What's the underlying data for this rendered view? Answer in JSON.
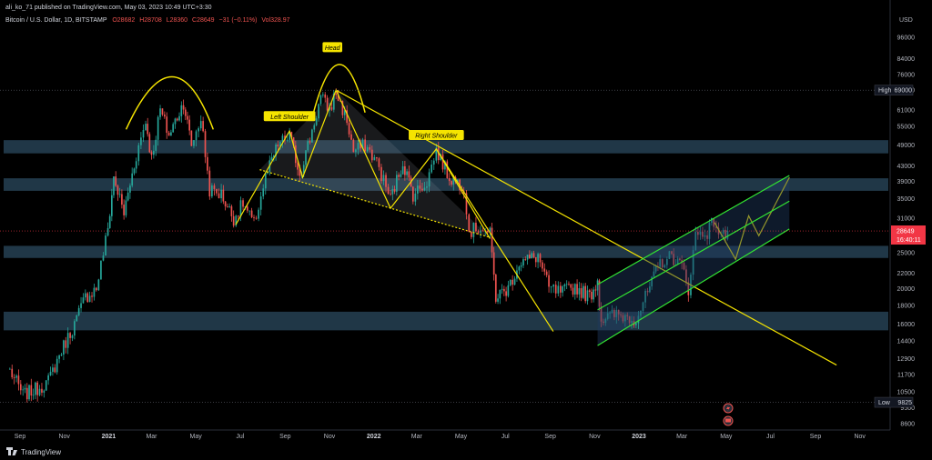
{
  "top_line": "ali_ko_71 published on TradingView.com, May 03, 2023 10:49 UTC+3:30",
  "header": {
    "symbol": "Bitcoin / U.S. Dollar, 1D, BITSTAMP",
    "open": "O28682",
    "high": "H28708",
    "low": "L28360",
    "close": "C28649",
    "change": "−31 (−0.11%)",
    "vol": "Vol328.97"
  },
  "footer": {
    "brand": "TradingView"
  },
  "colors": {
    "background": "#000000",
    "up": "#26a69a",
    "down": "#ef5350",
    "trendline": "#f5e400",
    "channel": "#32e532",
    "zone": "#2b4a5f",
    "price_tag": "#f23645"
  },
  "chart_data": {
    "type": "candlestick",
    "y_axis": {
      "scale": "log",
      "unit": "USD",
      "ticks": [
        8600,
        9500,
        10500,
        11700,
        12900,
        14400,
        16000,
        18000,
        20000,
        22000,
        25000,
        28000,
        31000,
        35000,
        39000,
        43000,
        49000,
        55000,
        61000,
        69000,
        76000,
        84000,
        96000
      ],
      "range": [
        8000,
        110000
      ]
    },
    "x_axis": {
      "ticks": [
        {
          "label": "Sep",
          "date": "2020-09-01"
        },
        {
          "label": "Nov",
          "date": "2020-11-01"
        },
        {
          "label": "2021",
          "date": "2021-01-01",
          "bold": true
        },
        {
          "label": "Mar",
          "date": "2021-03-01"
        },
        {
          "label": "May",
          "date": "2021-05-01"
        },
        {
          "label": "Jul",
          "date": "2021-07-01"
        },
        {
          "label": "Sep",
          "date": "2021-09-01"
        },
        {
          "label": "Nov",
          "date": "2021-11-01"
        },
        {
          "label": "2022",
          "date": "2022-01-01",
          "bold": true
        },
        {
          "label": "Mar",
          "date": "2022-03-01"
        },
        {
          "label": "May",
          "date": "2022-05-01"
        },
        {
          "label": "Jul",
          "date": "2022-07-01"
        },
        {
          "label": "Sep",
          "date": "2022-09-01"
        },
        {
          "label": "Nov",
          "date": "2022-11-01"
        },
        {
          "label": "2023",
          "date": "2023-01-01",
          "bold": true
        },
        {
          "label": "Mar",
          "date": "2023-03-01"
        },
        {
          "label": "May",
          "date": "2023-05-01"
        },
        {
          "label": "Jul",
          "date": "2023-07-01"
        },
        {
          "label": "Sep",
          "date": "2023-09-01"
        },
        {
          "label": "Nov",
          "date": "2023-11-01"
        }
      ]
    },
    "candle_path": [
      [
        "2020-08-18",
        12000
      ],
      [
        "2020-09-05",
        10300
      ],
      [
        "2020-09-25",
        10700
      ],
      [
        "2020-10-10",
        11200
      ],
      [
        "2020-10-28",
        13600
      ],
      [
        "2020-11-15",
        16000
      ],
      [
        "2020-11-30",
        19000
      ],
      [
        "2020-12-15",
        20000
      ],
      [
        "2020-12-31",
        29000
      ],
      [
        "2021-01-08",
        40000
      ],
      [
        "2021-01-22",
        32000
      ],
      [
        "2021-02-08",
        46000
      ],
      [
        "2021-02-21",
        57000
      ],
      [
        "2021-03-01",
        45000
      ],
      [
        "2021-03-13",
        61000
      ],
      [
        "2021-03-25",
        52000
      ],
      [
        "2021-04-14",
        64000
      ],
      [
        "2021-04-25",
        49000
      ],
      [
        "2021-05-08",
        58000
      ],
      [
        "2021-05-20",
        37000
      ],
      [
        "2021-06-05",
        36000
      ],
      [
        "2021-06-22",
        31000
      ],
      [
        "2021-07-05",
        34000
      ],
      [
        "2021-07-20",
        29800
      ],
      [
        "2021-08-05",
        40000
      ],
      [
        "2021-08-22",
        49000
      ],
      [
        "2021-09-07",
        52000
      ],
      [
        "2021-09-21",
        41000
      ],
      [
        "2021-10-05",
        51000
      ],
      [
        "2021-10-20",
        66000
      ],
      [
        "2021-11-01",
        61000
      ],
      [
        "2021-11-10",
        68000
      ],
      [
        "2021-11-25",
        57000
      ],
      [
        "2021-12-04",
        47000
      ],
      [
        "2021-12-20",
        49000
      ],
      [
        "2022-01-05",
        44000
      ],
      [
        "2022-01-24",
        35000
      ],
      [
        "2022-02-10",
        44000
      ],
      [
        "2022-02-24",
        36000
      ],
      [
        "2022-03-15",
        39000
      ],
      [
        "2022-03-28",
        47500
      ],
      [
        "2022-04-15",
        40000
      ],
      [
        "2022-05-05",
        38000
      ],
      [
        "2022-05-12",
        28500
      ],
      [
        "2022-05-28",
        29500
      ],
      [
        "2022-06-10",
        28000
      ],
      [
        "2022-06-18",
        19000
      ],
      [
        "2022-07-05",
        20000
      ],
      [
        "2022-07-20",
        23500
      ],
      [
        "2022-08-15",
        24500
      ],
      [
        "2022-08-30",
        20000
      ],
      [
        "2022-09-15",
        19500
      ],
      [
        "2022-10-05",
        20200
      ],
      [
        "2022-10-25",
        19000
      ],
      [
        "2022-11-05",
        21000
      ],
      [
        "2022-11-10",
        16500
      ],
      [
        "2022-12-01",
        17000
      ],
      [
        "2022-12-28",
        16600
      ],
      [
        "2023-01-13",
        19500
      ],
      [
        "2023-01-30",
        23500
      ],
      [
        "2023-02-15",
        24500
      ],
      [
        "2023-03-01",
        23000
      ],
      [
        "2023-03-10",
        20000
      ],
      [
        "2023-03-20",
        28000
      ],
      [
        "2023-04-05",
        28500
      ],
      [
        "2023-04-14",
        30500
      ],
      [
        "2023-04-24",
        27500
      ],
      [
        "2023-05-03",
        28649
      ]
    ],
    "zones": [
      {
        "low": 46500,
        "high": 50500
      },
      {
        "low": 36800,
        "high": 39800
      },
      {
        "low": 24200,
        "high": 26100
      },
      {
        "low": 15400,
        "high": 17300
      }
    ],
    "price_labels": [
      {
        "text": "High",
        "value_text": "69000",
        "value": 69000
      },
      {
        "text": "Low",
        "value_text": "9825",
        "value": 9825
      }
    ],
    "current_price": {
      "value": 28649,
      "text": "28649",
      "countdown": "16:40:11"
    },
    "annotations": {
      "left_shoulder": "Left Shoulder",
      "head": "Head",
      "right_shoulder": "Right Shoulder"
    },
    "pattern_lines": [
      {
        "kind": "solid",
        "points": [
          [
            "2021-06-25",
            29800
          ],
          [
            "2021-09-07",
            53500
          ],
          [
            "2021-09-25",
            40000
          ],
          [
            "2021-11-10",
            69000
          ],
          [
            "2022-01-24",
            33000
          ],
          [
            "2022-03-28",
            47800
          ],
          [
            "2022-06-10",
            27300
          ]
        ]
      },
      {
        "kind": "neckline",
        "points": [
          [
            "2021-07-28",
            42000
          ],
          [
            "2022-06-10",
            27500
          ]
        ]
      },
      {
        "kind": "solid",
        "points": [
          [
            "2021-11-10",
            69000
          ],
          [
            "2023-09-30",
            12400
          ]
        ]
      },
      {
        "kind": "solid",
        "points": [
          [
            "2022-03-28",
            47800
          ],
          [
            "2022-09-05",
            15300
          ]
        ]
      },
      {
        "kind": "solid",
        "points": [
          [
            "2023-04-15",
            30200
          ],
          [
            "2023-05-14",
            24000
          ],
          [
            "2023-06-01",
            31500
          ],
          [
            "2023-06-15",
            27800
          ],
          [
            "2023-07-27",
            40000
          ]
        ]
      }
    ],
    "arcs": [
      {
        "from": [
          "2021-01-25",
          54000
        ],
        "peak": [
          "2021-04-01",
          75000
        ],
        "to": [
          "2021-05-25",
          54000
        ]
      },
      {
        "from": [
          "2021-10-10",
          60000
        ],
        "peak": [
          "2021-11-15",
          81000
        ],
        "to": [
          "2021-12-20",
          60000
        ]
      }
    ],
    "channel": {
      "upper": [
        [
          "2022-11-05",
          20500
        ],
        [
          "2023-07-27",
          40500
        ]
      ],
      "middle": [
        [
          "2022-11-05",
          17500
        ],
        [
          "2023-07-27",
          34500
        ]
      ],
      "lower": [
        [
          "2022-11-05",
          14000
        ],
        [
          "2023-07-27",
          29000
        ]
      ]
    },
    "wedge_fill": [
      [
        "2021-07-28",
        42000
      ],
      [
        "2021-11-10",
        69000
      ],
      [
        "2022-06-10",
        27500
      ]
    ]
  }
}
